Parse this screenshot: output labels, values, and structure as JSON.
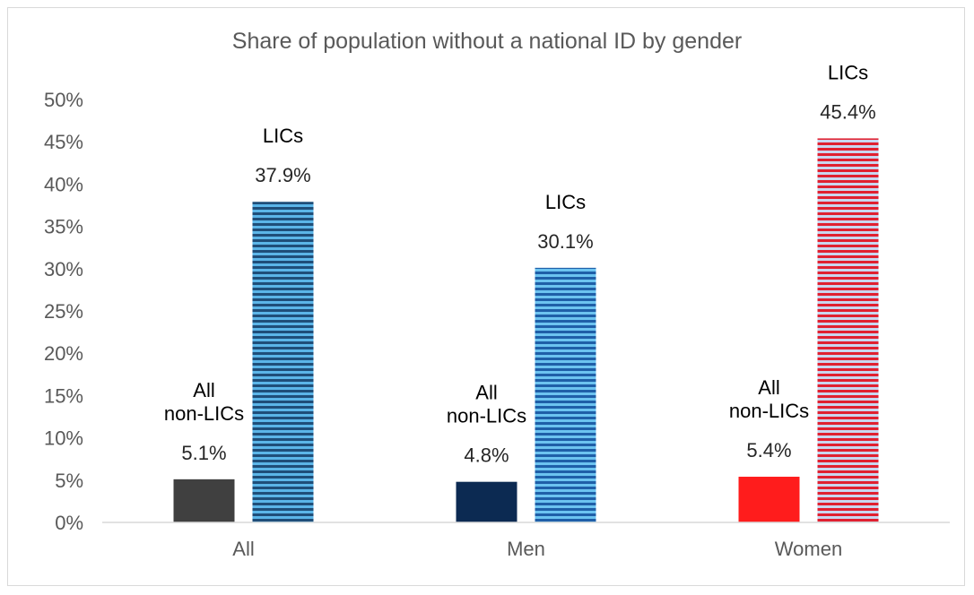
{
  "chart_data": {
    "type": "bar",
    "title": "Share of population without a national ID by gender",
    "xlabel": "",
    "ylabel": "",
    "ylim": [
      0,
      50
    ],
    "y_ticks": [
      "0%",
      "5%",
      "10%",
      "15%",
      "20%",
      "25%",
      "30%",
      "35%",
      "40%",
      "45%",
      "50%"
    ],
    "grid": false,
    "legend": "none",
    "categories": [
      "All",
      "Men",
      "Women"
    ],
    "series": [
      {
        "name": "All non-LICs",
        "values": [
          5.1,
          4.8,
          5.4
        ],
        "labels": [
          "5.1%",
          "4.8%",
          "5.4%"
        ],
        "colors": [
          "#404040",
          "#0c2a52",
          "#ff1c1c"
        ],
        "pattern": "solid"
      },
      {
        "name": "LICs",
        "values": [
          37.9,
          30.1,
          45.4
        ],
        "labels": [
          "37.9%",
          "30.1%",
          "45.4%"
        ],
        "colors": [
          "#1f4e79",
          "#1f5fa8",
          "#e02030"
        ],
        "stripe_colors": [
          "#5bb5e8",
          "#6cc3f0",
          "#c9d6ef"
        ],
        "pattern": "horizontal-stripes"
      }
    ]
  }
}
